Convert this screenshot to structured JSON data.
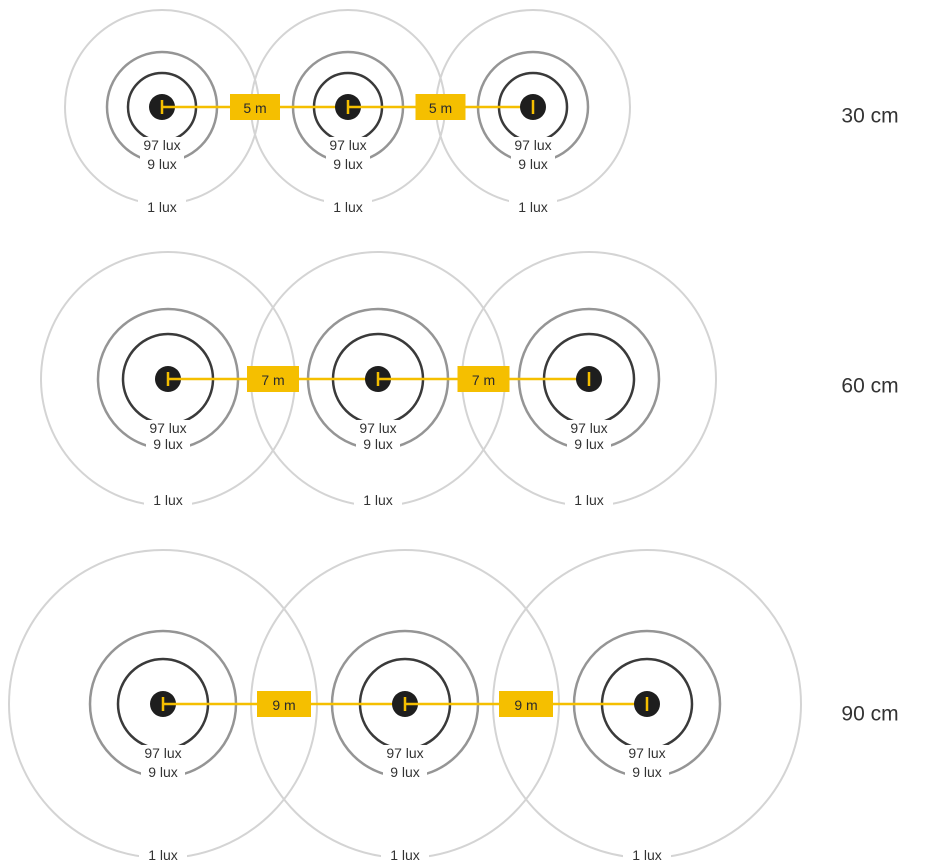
{
  "colors": {
    "accent": "#f5bf00",
    "lamp": "#1e1e1e",
    "ring_outer": "#d4d4d4",
    "ring_mid": "#959595",
    "ring_inner": "#3a3a3a"
  },
  "lux_levels": [
    "97 lux",
    "9 lux",
    "1 lux"
  ],
  "rows": [
    {
      "height_label": "30 cm",
      "spacing_label": "5 m"
    },
    {
      "height_label": "60 cm",
      "spacing_label": "7 m"
    },
    {
      "height_label": "90 cm",
      "spacing_label": "9 m"
    }
  ]
}
